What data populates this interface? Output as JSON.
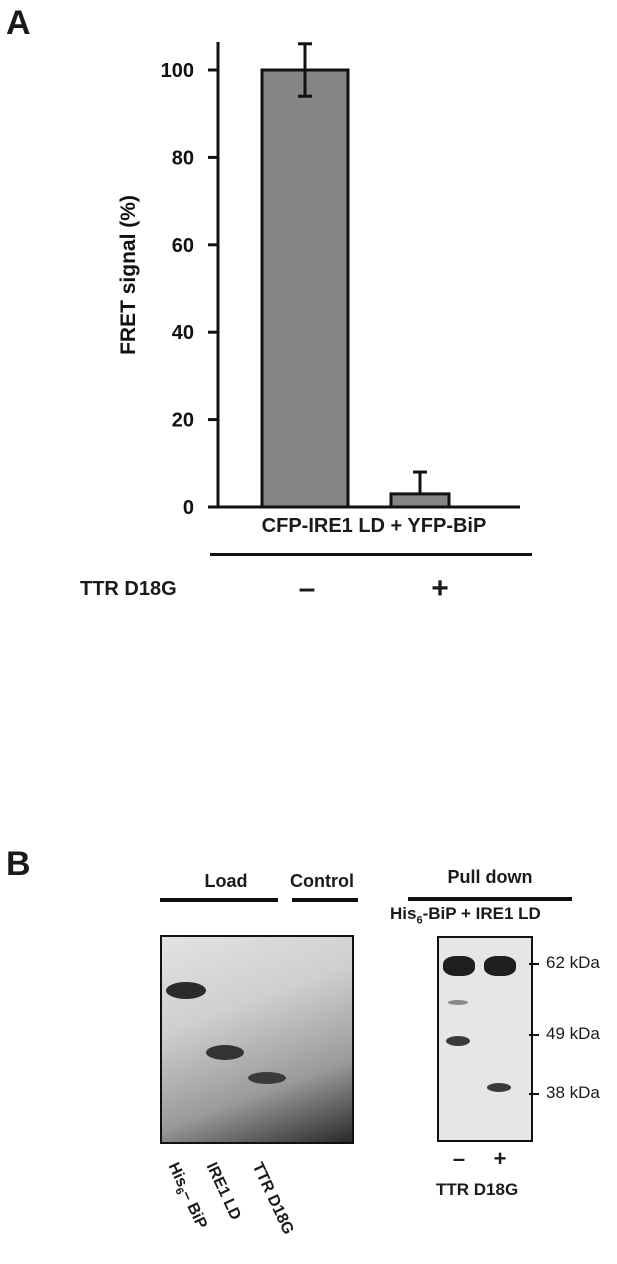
{
  "panel_a": {
    "letter": "A",
    "group_label": "CFP-IRE1 LD + YFP-BiP",
    "condition_label": "TTR D18G",
    "condition_values": [
      "–",
      "+"
    ]
  },
  "panel_b": {
    "letter": "B",
    "load_label": "Load",
    "control_label": "Control",
    "pulldown_label": "Pull down",
    "pulldown_sub_pre": "His",
    "pulldown_sub_num": "6",
    "pulldown_sub_post": "-BiP + IRE1 LD",
    "lane_labels": [
      {
        "pre": "His",
        "num": "6",
        "post": "– BiP"
      },
      {
        "pre": "IRE1 LD",
        "num": "",
        "post": ""
      },
      {
        "pre": "TTR D18G",
        "num": "",
        "post": ""
      }
    ],
    "markers": [
      "62 kDa",
      "49 kDa",
      "38 kDa"
    ],
    "pulldown_conditions": [
      "–",
      "+"
    ],
    "pulldown_condition_label": "TTR D18G"
  },
  "chart_data": {
    "type": "bar",
    "categories": [
      "–",
      "+"
    ],
    "values": [
      100,
      3
    ],
    "errors": [
      6,
      5
    ],
    "ylabel": "FRET signal  (%)",
    "xlabel": "CFP-IRE1 LD + YFP-BiP",
    "ylim": [
      0,
      108
    ],
    "yticks": [
      0,
      20,
      40,
      60,
      80,
      100
    ],
    "bar_color": "#858585",
    "grid": false
  }
}
